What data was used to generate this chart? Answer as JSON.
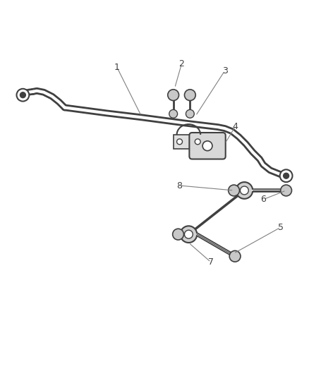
{
  "bg_color": "#ffffff",
  "line_color": "#404040",
  "label_color": "#404040",
  "leader_color": "#808080",
  "fig_width": 4.38,
  "fig_height": 5.33,
  "dpi": 100
}
